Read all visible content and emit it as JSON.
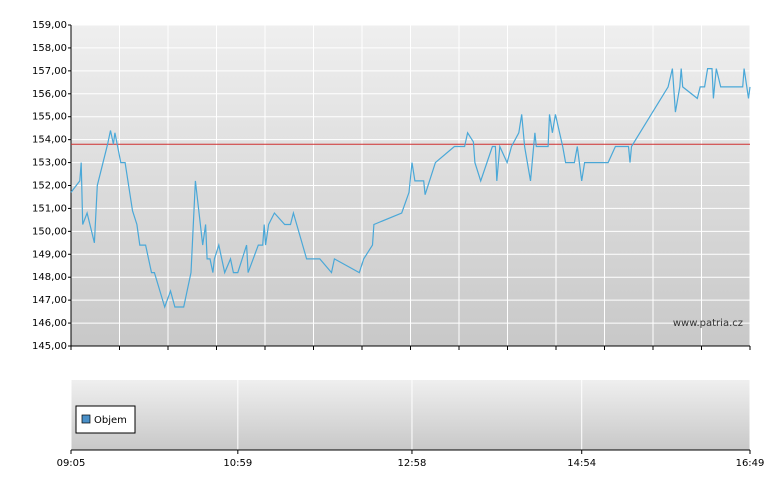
{
  "chart_data": {
    "type": "line",
    "x": [
      "09:05",
      "09:11",
      "09:12",
      "09:13",
      "09:16",
      "09:21",
      "09:23",
      "09:30",
      "09:32",
      "09:34",
      "09:35",
      "09:39",
      "09:42",
      "09:47",
      "09:50",
      "09:52",
      "09:56",
      "10:00",
      "10:02",
      "10:09",
      "10:13",
      "10:16",
      "10:22",
      "10:27",
      "10:30",
      "10:35",
      "10:37",
      "10:38",
      "10:40",
      "10:42",
      "10:43",
      "10:46",
      "10:50",
      "10:54",
      "10:56",
      "10:59",
      "11:05",
      "11:06",
      "11:13",
      "11:16",
      "11:17",
      "11:18",
      "11:20",
      "11:24",
      "11:31",
      "11:35",
      "11:37",
      "11:46",
      "11:52",
      "11:55",
      "12:03",
      "12:05",
      "12:22",
      "12:25",
      "12:31",
      "12:32",
      "12:51",
      "12:56",
      "12:58",
      "13:00",
      "13:06",
      "13:07",
      "13:14",
      "13:27",
      "13:34",
      "13:36",
      "13:40",
      "13:41",
      "13:45",
      "13:53",
      "13:55",
      "13:56",
      "13:58",
      "14:03",
      "14:06",
      "14:11",
      "14:13",
      "14:15",
      "14:19",
      "14:22",
      "14:23",
      "14:31",
      "14:32",
      "14:34",
      "14:36",
      "14:41",
      "14:43",
      "14:49",
      "14:51",
      "14:54",
      "14:56",
      "15:12",
      "15:17",
      "15:26",
      "15:27",
      "15:28",
      "15:53",
      "15:56",
      "15:58",
      "16:01",
      "16:02",
      "16:03",
      "16:13",
      "16:15",
      "16:18",
      "16:20",
      "16:23",
      "16:24",
      "16:26",
      "16:29",
      "16:44",
      "16:45",
      "16:48",
      "16:49"
    ],
    "series": [
      {
        "color": "#4aa8d8",
        "values": [
          151.7,
          152.2,
          153.0,
          150.3,
          150.8,
          149.5,
          152.0,
          153.8,
          154.4,
          153.8,
          154.3,
          153.0,
          153.0,
          150.9,
          150.3,
          149.4,
          149.4,
          148.2,
          148.2,
          146.7,
          147.4,
          146.7,
          146.7,
          148.2,
          152.2,
          149.4,
          150.3,
          148.8,
          148.8,
          148.2,
          148.8,
          149.4,
          148.2,
          148.8,
          148.2,
          148.2,
          149.4,
          148.2,
          149.4,
          149.4,
          150.3,
          149.4,
          150.3,
          150.8,
          150.3,
          150.3,
          150.8,
          148.8,
          148.8,
          148.8,
          148.2,
          148.8,
          148.2,
          148.8,
          149.4,
          150.3,
          150.8,
          151.7,
          153.0,
          152.2,
          152.2,
          151.6,
          153.0,
          153.7,
          153.7,
          154.3,
          153.9,
          153.0,
          152.2,
          153.7,
          153.7,
          152.2,
          153.7,
          153.0,
          153.7,
          154.3,
          155.1,
          153.7,
          152.2,
          154.3,
          153.7,
          153.7,
          155.1,
          154.3,
          155.1,
          153.7,
          153.0,
          153.0,
          153.7,
          152.2,
          153.0,
          153.0,
          153.7,
          153.7,
          153.0,
          153.7,
          156.3,
          157.1,
          155.2,
          156.3,
          157.1,
          156.3,
          155.8,
          156.3,
          156.3,
          157.1,
          157.1,
          155.8,
          157.1,
          156.3,
          156.3,
          157.1,
          155.8,
          156.3
        ]
      }
    ],
    "reference_line": 153.8,
    "reference_color": "#d03030",
    "ylim": [
      145,
      159
    ],
    "yticks": [
      {
        "value": 145,
        "label": "145,00"
      },
      {
        "value": 146,
        "label": "146,00"
      },
      {
        "value": 147,
        "label": "147,00"
      },
      {
        "value": 148,
        "label": "148,00"
      },
      {
        "value": 149,
        "label": "149,00"
      },
      {
        "value": 150,
        "label": "150,00"
      },
      {
        "value": 151,
        "label": "151,00"
      },
      {
        "value": 152,
        "label": "152,00"
      },
      {
        "value": 153,
        "label": "153,00"
      },
      {
        "value": 154,
        "label": "154,00"
      },
      {
        "value": 155,
        "label": "155,00"
      },
      {
        "value": 156,
        "label": "156,00"
      },
      {
        "value": 157,
        "label": "157,00"
      },
      {
        "value": 158,
        "label": "158,00"
      },
      {
        "value": 159,
        "label": "159,00"
      }
    ],
    "xlim": [
      "09:05",
      "16:49"
    ],
    "xticks": [
      "09:05",
      "10:59",
      "12:58",
      "14:54",
      "16:49"
    ],
    "grid": true,
    "watermark": "www.patria.cz",
    "volume_legend": "Objem",
    "volume_color": "#4a90c8"
  }
}
